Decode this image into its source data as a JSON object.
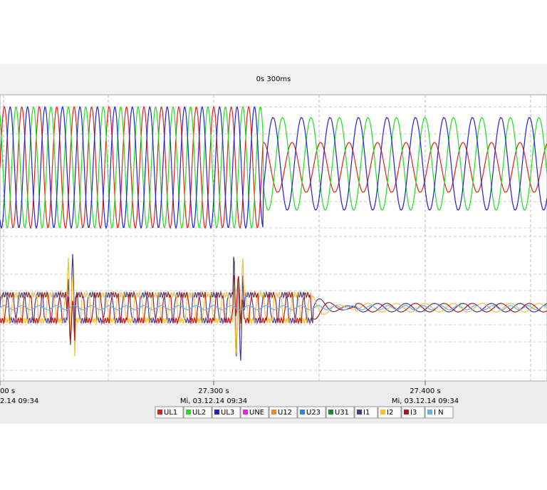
{
  "header": {
    "title": "0s 300ms"
  },
  "time_axis": [
    {
      "time": "00 s",
      "date": "2.14 09:34"
    },
    {
      "time": "27.300 s",
      "date": "Mi, 03.12.14 09:34"
    },
    {
      "time": "27.400 s",
      "date": "Mi, 03.12.14 09:34"
    }
  ],
  "legend": [
    {
      "name": "UL1",
      "color": "#e0201a"
    },
    {
      "name": "UL2",
      "color": "#22dd22"
    },
    {
      "name": "UL3",
      "color": "#2222cc"
    },
    {
      "name": "UNE",
      "color": "#ee22ee"
    },
    {
      "name": "U12",
      "color": "#f08a1a"
    },
    {
      "name": "U23",
      "color": "#2a8ae0"
    },
    {
      "name": "U31",
      "color": "#1a8a2a"
    },
    {
      "name": "I1",
      "color": "#4a3a8a"
    },
    {
      "name": "I2",
      "color": "#f0c040"
    },
    {
      "name": "I3",
      "color": "#b01a1a"
    },
    {
      "name": "I N",
      "color": "#6ab0e0"
    }
  ]
}
